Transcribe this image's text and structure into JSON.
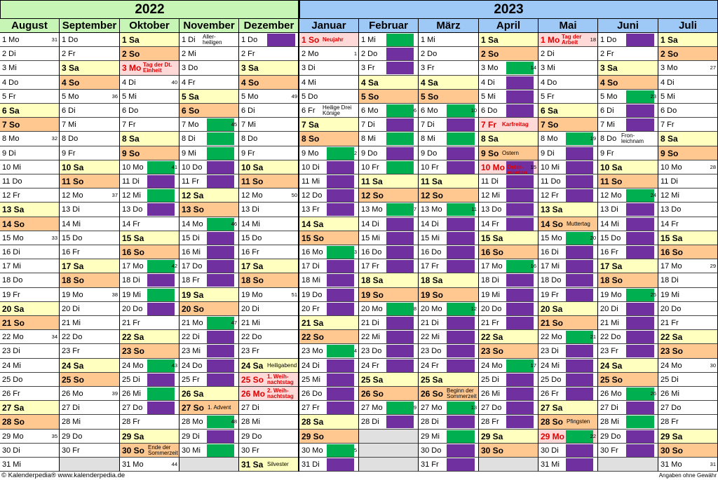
{
  "years": {
    "y2022": "2022",
    "y2023": "2023"
  },
  "colors": {
    "green": "#00b050",
    "purple": "#7030a0",
    "saturday": "#ffffc0",
    "sunday": "#ffc890",
    "holiday": "#ffd8d8"
  },
  "months": [
    {
      "name": "August",
      "days": [
        "1 Mo",
        "2 Di",
        "3 Mi",
        "4 Do",
        "5 Fr",
        "6 Sa",
        "7 So",
        "8 Mo",
        "9 Di",
        "10 Mi",
        "11 Do",
        "12 Fr",
        "13 Sa",
        "14 So",
        "15 Mo",
        "16 Di",
        "17 Mi",
        "18 Do",
        "19 Fr",
        "20 Sa",
        "21 So",
        "22 Mo",
        "23 Di",
        "24 Mi",
        "25 Do",
        "26 Fr",
        "27 Sa",
        "28 So",
        "29 Mo",
        "30 Di",
        "31 Mi"
      ],
      "weeks": {
        "1": "31",
        "8": "32",
        "15": "33",
        "22": "34",
        "29": "35"
      },
      "notes": {},
      "holidays": [],
      "blocks": {}
    },
    {
      "name": "September",
      "days": [
        "1 Do",
        "2 Fr",
        "3 Sa",
        "4 So",
        "5 Mo",
        "6 Di",
        "7 Mi",
        "8 Do",
        "9 Fr",
        "10 Sa",
        "11 So",
        "12 Mo",
        "13 Di",
        "14 Mi",
        "15 Do",
        "16 Fr",
        "17 Sa",
        "18 So",
        "19 Mo",
        "20 Di",
        "21 Mi",
        "22 Do",
        "23 Fr",
        "24 Sa",
        "25 So",
        "26 Mo",
        "27 Di",
        "28 Mi",
        "29 Do",
        "30 Fr"
      ],
      "weeks": {
        "5": "36",
        "12": "37",
        "19": "38",
        "26": "39"
      },
      "notes": {},
      "holidays": [],
      "blocks": {}
    },
    {
      "name": "Oktober",
      "days": [
        "1 Sa",
        "2 So",
        "3 Mo",
        "4 Di",
        "5 Mi",
        "6 Do",
        "7 Fr",
        "8 Sa",
        "9 So",
        "10 Mo",
        "11 Di",
        "12 Mi",
        "13 Do",
        "14 Fr",
        "15 Sa",
        "16 So",
        "17 Mo",
        "18 Di",
        "19 Mi",
        "20 Do",
        "21 Fr",
        "22 Sa",
        "23 So",
        "24 Mo",
        "25 Di",
        "26 Mi",
        "27 Do",
        "28 Fr",
        "29 Sa",
        "30 So",
        "31 Mo"
      ],
      "weeks": {
        "4": "40",
        "10": "41",
        "17": "42",
        "24": "43",
        "31": "44"
      },
      "notes": {
        "3": "Tag der Dt. Einheit",
        "30": "Ende der Sommerzeit"
      },
      "holidays": [
        "3"
      ],
      "blocks": {
        "10": "g",
        "11": "p",
        "12": "g",
        "13": "p",
        "17": "g",
        "18": "p",
        "19": "g",
        "20": "p",
        "24": "g",
        "25": "p",
        "26": "g",
        "27": "p"
      }
    },
    {
      "name": "November",
      "days": [
        "1 Di",
        "2 Mi",
        "3 Do",
        "4 Fr",
        "5 Sa",
        "6 So",
        "7 Mo",
        "8 Di",
        "9 Mi",
        "10 Do",
        "11 Fr",
        "12 Sa",
        "13 So",
        "14 Mo",
        "15 Di",
        "16 Mi",
        "17 Do",
        "18 Fr",
        "19 Sa",
        "20 So",
        "21 Mo",
        "22 Di",
        "23 Mi",
        "24 Do",
        "25 Fr",
        "26 Sa",
        "27 So",
        "28 Mo",
        "29 Di",
        "30 Mi"
      ],
      "weeks": {
        "7": "45",
        "14": "46",
        "21": "47",
        "28": "48"
      },
      "notes": {
        "1": "Aller- heiligen",
        "27": "1. Advent"
      },
      "holidays": [],
      "blocks": {
        "7": "g",
        "8": "g",
        "9": "g",
        "10": "p",
        "11": "p",
        "14": "g",
        "15": "p",
        "16": "p",
        "17": "p",
        "18": "p",
        "21": "g",
        "22": "p",
        "23": "p",
        "24": "p",
        "25": "p",
        "28": "g",
        "29": "p",
        "30": "g"
      }
    },
    {
      "name": "Dezember",
      "days": [
        "1 Do",
        "2 Fr",
        "3 Sa",
        "4 So",
        "5 Mo",
        "6 Di",
        "7 Mi",
        "8 Do",
        "9 Fr",
        "10 Sa",
        "11 So",
        "12 Mo",
        "13 Di",
        "14 Mi",
        "15 Do",
        "16 Fr",
        "17 Sa",
        "18 So",
        "19 Mo",
        "20 Di",
        "21 Mi",
        "22 Do",
        "23 Fr",
        "24 Sa",
        "25 So",
        "26 Mo",
        "27 Di",
        "28 Mi",
        "29 Do",
        "30 Fr",
        "31 Sa"
      ],
      "weeks": {
        "5": "49",
        "12": "50",
        "19": "51"
      },
      "notes": {
        "24": "Heiligabend",
        "25": "1. Weih- nachtstag",
        "26": "2. Weih- nachtstag",
        "31": "Silvester"
      },
      "holidays": [
        "25",
        "26"
      ],
      "blocks": {
        "1": "p"
      }
    },
    {
      "name": "Januar",
      "days": [
        "1 So",
        "2 Mo",
        "3 Di",
        "4 Mi",
        "5 Do",
        "6 Fr",
        "7 Sa",
        "8 So",
        "9 Mo",
        "10 Di",
        "11 Mi",
        "12 Do",
        "13 Fr",
        "14 Sa",
        "15 So",
        "16 Mo",
        "17 Di",
        "18 Mi",
        "19 Do",
        "20 Fr",
        "21 Sa",
        "22 So",
        "23 Mo",
        "24 Di",
        "25 Mi",
        "26 Do",
        "27 Fr",
        "28 Sa",
        "29 So",
        "30 Mo",
        "31 Di"
      ],
      "weeks": {
        "2": "1",
        "9": "2",
        "16": "3",
        "23": "4",
        "30": "5"
      },
      "notes": {
        "1": "Neujahr",
        "6": "Heilige Drei Könige"
      },
      "holidays": [
        "1"
      ],
      "blocks": {
        "9": "g",
        "10": "p",
        "11": "p",
        "12": "p",
        "13": "p",
        "16": "g",
        "17": "p",
        "18": "p",
        "19": "p",
        "20": "p",
        "23": "g",
        "24": "p",
        "25": "p",
        "26": "p",
        "27": "p",
        "30": "g",
        "31": "p"
      }
    },
    {
      "name": "Februar",
      "days": [
        "1 Mi",
        "2 Do",
        "3 Fr",
        "4 Sa",
        "5 So",
        "6 Mo",
        "7 Di",
        "8 Mi",
        "9 Do",
        "10 Fr",
        "11 Sa",
        "12 So",
        "13 Mo",
        "14 Di",
        "15 Mi",
        "16 Do",
        "17 Fr",
        "18 Sa",
        "19 So",
        "20 Mo",
        "21 Di",
        "22 Mi",
        "23 Do",
        "24 Fr",
        "25 Sa",
        "26 So",
        "27 Mo",
        "28 Di"
      ],
      "weeks": {
        "6": "6",
        "13": "7",
        "20": "8",
        "27": "9"
      },
      "notes": {},
      "holidays": [],
      "blocks": {
        "1": "g",
        "2": "p",
        "3": "p",
        "6": "g",
        "7": "p",
        "8": "g",
        "9": "p",
        "10": "g",
        "13": "g",
        "14": "p",
        "15": "p",
        "16": "p",
        "17": "p",
        "20": "g",
        "21": "p",
        "22": "p",
        "23": "p",
        "24": "p",
        "27": "g",
        "28": "p"
      }
    },
    {
      "name": "März",
      "days": [
        "1 Mi",
        "2 Do",
        "3 Fr",
        "4 Sa",
        "5 So",
        "6 Mo",
        "7 Di",
        "8 Mi",
        "9 Do",
        "10 Fr",
        "11 Sa",
        "12 So",
        "13 Mo",
        "14 Di",
        "15 Mi",
        "16 Do",
        "17 Fr",
        "18 Sa",
        "19 So",
        "20 Mo",
        "21 Di",
        "22 Mi",
        "23 Do",
        "24 Fr",
        "25 Sa",
        "26 So",
        "27 Mo",
        "28 Di",
        "29 Mi",
        "30 Do",
        "31 Fr"
      ],
      "weeks": {
        "6": "10",
        "13": "11",
        "20": "12",
        "27": "13"
      },
      "notes": {
        "26": "Beginn der Sommerzeit"
      },
      "holidays": [],
      "blocks": {
        "6": "g",
        "7": "p",
        "8": "g",
        "9": "p",
        "10": "p",
        "13": "g",
        "14": "p",
        "15": "p",
        "16": "p",
        "17": "p",
        "20": "g",
        "21": "p",
        "22": "p",
        "23": "p",
        "24": "p",
        "27": "g",
        "28": "p",
        "29": "g",
        "30": "p",
        "31": "p"
      }
    },
    {
      "name": "April",
      "days": [
        "1 Sa",
        "2 So",
        "3 Mo",
        "4 Di",
        "5 Mi",
        "6 Do",
        "7 Fr",
        "8 Sa",
        "9 So",
        "10 Mo",
        "11 Di",
        "12 Mi",
        "13 Do",
        "14 Fr",
        "15 Sa",
        "16 So",
        "17 Mo",
        "18 Di",
        "19 Mi",
        "20 Do",
        "21 Fr",
        "22 Sa",
        "23 So",
        "24 Mo",
        "25 Di",
        "26 Mi",
        "27 Do",
        "28 Fr",
        "29 Sa",
        "30 So"
      ],
      "weeks": {
        "3": "14",
        "10": "15",
        "17": "16",
        "24": "17"
      },
      "notes": {
        "7": "Karfreitag",
        "9": "Ostern",
        "10": "Oster- montag"
      },
      "holidays": [
        "7",
        "10"
      ],
      "blocks": {
        "3": "g",
        "4": "p",
        "5": "p",
        "6": "p",
        "10": "p",
        "11": "p",
        "12": "p",
        "13": "p",
        "14": "p",
        "17": "g",
        "18": "p",
        "19": "p",
        "20": "p",
        "21": "p",
        "24": "g",
        "25": "p",
        "26": "p",
        "27": "p",
        "28": "p"
      }
    },
    {
      "name": "Mai",
      "days": [
        "1 Mo",
        "2 Di",
        "3 Mi",
        "4 Do",
        "5 Fr",
        "6 Sa",
        "7 So",
        "8 Mo",
        "9 Di",
        "10 Mi",
        "11 Do",
        "12 Fr",
        "13 Sa",
        "14 So",
        "15 Mo",
        "16 Di",
        "17 Mi",
        "18 Do",
        "19 Fr",
        "20 Sa",
        "21 So",
        "22 Mo",
        "23 Di",
        "24 Mi",
        "25 Do",
        "26 Fr",
        "27 Sa",
        "28 So",
        "29 Mo",
        "30 Di",
        "31 Mi"
      ],
      "weeks": {
        "1": "18",
        "8": "19",
        "15": "20",
        "22": "21",
        "29": "22"
      },
      "notes": {
        "1": "Tag der Arbeit",
        "14": "Muttertag",
        "28": "Pfingsten"
      },
      "holidays": [
        "1",
        "29"
      ],
      "blocks": {
        "8": "g",
        "9": "p",
        "10": "p",
        "11": "p",
        "12": "p",
        "15": "g",
        "16": "p",
        "17": "p",
        "18": "p",
        "19": "p",
        "22": "g",
        "23": "p",
        "24": "p",
        "25": "p",
        "26": "p",
        "29": "g",
        "30": "p",
        "31": "p"
      }
    },
    {
      "name": "Juni",
      "days": [
        "1 Do",
        "2 Fr",
        "3 Sa",
        "4 So",
        "5 Mo",
        "6 Di",
        "7 Mi",
        "8 Do",
        "9 Fr",
        "10 Sa",
        "11 So",
        "12 Mo",
        "13 Di",
        "14 Mi",
        "15 Do",
        "16 Fr",
        "17 Sa",
        "18 So",
        "19 Mo",
        "20 Di",
        "21 Mi",
        "22 Do",
        "23 Fr",
        "24 Sa",
        "25 So",
        "26 Mo",
        "27 Di",
        "28 Mi",
        "29 Do",
        "30 Fr"
      ],
      "weeks": {
        "5": "23",
        "12": "24",
        "19": "25",
        "26": "26"
      },
      "notes": {
        "8": "Fron- leichnam"
      },
      "holidays": [],
      "blocks": {
        "1": "p",
        "5": "g",
        "6": "p",
        "7": "p",
        "12": "g",
        "13": "p",
        "14": "p",
        "15": "p",
        "16": "p",
        "19": "g",
        "20": "p",
        "21": "p",
        "22": "p",
        "23": "p",
        "26": "g",
        "27": "p",
        "28": "g",
        "29": "p",
        "30": "p"
      }
    },
    {
      "name": "Juli",
      "days": [
        "1 Sa",
        "2 So",
        "3 Mo",
        "4 Di",
        "5 Mi",
        "6 Do",
        "7 Fr",
        "8 Sa",
        "9 So",
        "10 Mo",
        "11 Di",
        "12 Mi",
        "13 Do",
        "14 Fr",
        "15 Sa",
        "16 So",
        "17 Mo",
        "18 Di",
        "19 Mi",
        "20 Do",
        "21 Fr",
        "22 Sa",
        "23 So",
        "24 Mo",
        "25 Di",
        "26 Mi",
        "27 Do",
        "28 Fr",
        "29 Sa",
        "30 So",
        "31 Mo"
      ],
      "weeks": {
        "3": "27",
        "10": "28",
        "17": "29",
        "24": "30",
        "31": "31"
      },
      "notes": {},
      "holidays": [],
      "blocks": {}
    }
  ],
  "footer": {
    "copyright": "© Kalenderpedia®   www.kalenderpedia.de",
    "disclaimer": "Angaben ohne Gewähr"
  }
}
